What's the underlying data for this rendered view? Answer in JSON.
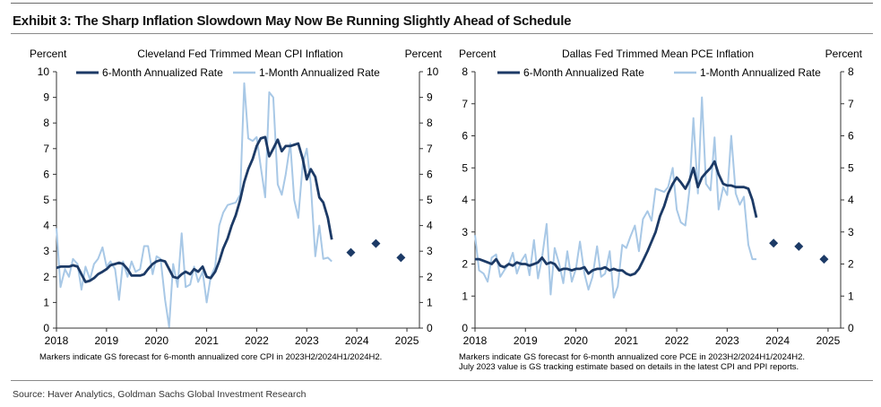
{
  "title": "Exhibit 3: The Sharp Inflation Slowdown May Now Be Running Slightly Ahead of Schedule",
  "source": "Source: Haver Analytics, Goldman Sachs Global Investment Research",
  "colors": {
    "dark": "#1c3a66",
    "light": "#a8c8e6",
    "axis": "#333333"
  },
  "chart_data": [
    {
      "type": "line",
      "title": "Cleveland Fed Trimmed Mean CPI Inflation",
      "ylabel_left": "Percent",
      "ylabel_right": "Percent",
      "ylim": [
        0,
        10
      ],
      "yticks": [
        "0",
        "1",
        "2",
        "3",
        "4",
        "5",
        "6",
        "7",
        "8",
        "9",
        "10"
      ],
      "xlim": [
        2018,
        2025.25
      ],
      "xticks": [
        "2018",
        "2019",
        "2020",
        "2021",
        "2022",
        "2023",
        "2024",
        "2025"
      ],
      "note": "Markers indicate GS forecast for 6-month annualized core CPI in 2023H2/2024H1/2024H2.",
      "series": [
        {
          "name": "6-Month Annualized Rate",
          "style": "dark",
          "x": [
            2018.0,
            2018.08,
            2018.17,
            2018.25,
            2018.33,
            2018.42,
            2018.5,
            2018.58,
            2018.67,
            2018.75,
            2018.83,
            2018.92,
            2019.0,
            2019.08,
            2019.17,
            2019.25,
            2019.33,
            2019.42,
            2019.5,
            2019.58,
            2019.67,
            2019.75,
            2019.83,
            2019.92,
            2020.0,
            2020.08,
            2020.17,
            2020.25,
            2020.33,
            2020.42,
            2020.5,
            2020.58,
            2020.67,
            2020.75,
            2020.83,
            2020.92,
            2021.0,
            2021.08,
            2021.17,
            2021.25,
            2021.33,
            2021.42,
            2021.5,
            2021.58,
            2021.67,
            2021.75,
            2021.83,
            2021.92,
            2022.0,
            2022.08,
            2022.17,
            2022.25,
            2022.33,
            2022.42,
            2022.5,
            2022.58,
            2022.67,
            2022.75,
            2022.83,
            2022.92,
            2023.0,
            2023.08,
            2023.17,
            2023.25,
            2023.33,
            2023.42,
            2023.5
          ],
          "values": [
            2.35,
            2.4,
            2.4,
            2.4,
            2.45,
            2.4,
            2.1,
            1.8,
            1.85,
            1.95,
            2.1,
            2.2,
            2.3,
            2.45,
            2.5,
            2.55,
            2.5,
            2.3,
            2.05,
            2.05,
            2.05,
            2.1,
            2.3,
            2.5,
            2.6,
            2.65,
            2.6,
            2.3,
            2.0,
            1.95,
            2.1,
            2.2,
            2.1,
            2.3,
            2.2,
            2.4,
            2.0,
            1.95,
            2.2,
            2.6,
            3.1,
            3.5,
            4.0,
            4.4,
            5.0,
            5.7,
            6.2,
            6.6,
            7.1,
            7.4,
            7.45,
            6.7,
            7.0,
            7.35,
            6.9,
            7.1,
            7.1,
            7.15,
            7.2,
            6.6,
            5.8,
            6.2,
            5.9,
            5.1,
            4.9,
            4.3,
            3.45
          ]
        },
        {
          "name": "1-Month Annualized Rate",
          "style": "light",
          "x": [
            2018.0,
            2018.08,
            2018.17,
            2018.25,
            2018.33,
            2018.42,
            2018.5,
            2018.58,
            2018.67,
            2018.75,
            2018.83,
            2018.92,
            2019.0,
            2019.08,
            2019.17,
            2019.25,
            2019.33,
            2019.42,
            2019.5,
            2019.58,
            2019.67,
            2019.75,
            2019.83,
            2019.92,
            2020.0,
            2020.08,
            2020.17,
            2020.25,
            2020.33,
            2020.42,
            2020.5,
            2020.58,
            2020.67,
            2020.75,
            2020.83,
            2020.92,
            2021.0,
            2021.08,
            2021.17,
            2021.25,
            2021.33,
            2021.42,
            2021.5,
            2021.58,
            2021.67,
            2021.75,
            2021.83,
            2021.92,
            2022.0,
            2022.08,
            2022.17,
            2022.25,
            2022.33,
            2022.42,
            2022.5,
            2022.58,
            2022.67,
            2022.75,
            2022.83,
            2022.92,
            2023.0,
            2023.08,
            2023.17,
            2023.25,
            2023.33,
            2023.42,
            2023.5
          ],
          "values": [
            3.9,
            1.6,
            2.3,
            2.0,
            2.7,
            2.5,
            1.5,
            2.4,
            1.9,
            2.5,
            2.7,
            3.15,
            2.4,
            2.6,
            2.3,
            1.1,
            2.6,
            2.0,
            2.6,
            2.2,
            2.3,
            3.2,
            3.2,
            2.1,
            2.8,
            2.7,
            1.1,
            0.05,
            2.5,
            1.6,
            3.7,
            1.6,
            1.7,
            2.4,
            1.8,
            2.2,
            1.0,
            2.0,
            2.4,
            4.0,
            4.5,
            4.8,
            4.85,
            4.9,
            5.2,
            9.55,
            7.4,
            7.3,
            7.45,
            6.3,
            5.1,
            9.2,
            9.0,
            5.6,
            5.2,
            6.0,
            7.2,
            5.0,
            4.3,
            6.4,
            7.0,
            5.6,
            2.8,
            4.0,
            2.7,
            2.75,
            2.6
          ]
        }
      ],
      "forecast": {
        "x": [
          2023.88,
          2024.38,
          2024.88
        ],
        "values": [
          2.95,
          3.3,
          2.75
        ]
      }
    },
    {
      "type": "line",
      "title": "Dallas Fed Trimmed Mean PCE Inflation",
      "ylabel_left": "Percent",
      "ylabel_right": "Percent",
      "ylim": [
        0,
        8
      ],
      "yticks": [
        "0",
        "1",
        "2",
        "3",
        "4",
        "5",
        "6",
        "7",
        "8"
      ],
      "xlim": [
        2018,
        2025.25
      ],
      "xticks": [
        "2018",
        "2019",
        "2020",
        "2021",
        "2022",
        "2023",
        "2024",
        "2025"
      ],
      "note": "Markers indicate GS forecast for 6-month annualized core PCE in 2023H2/2024H1/2024H2.",
      "note2": "July 2023 value is GS tracking estimate based on details in the latest CPI and PPI reports.",
      "series": [
        {
          "name": "6-Month Annualized Rate",
          "style": "dark",
          "x": [
            2018.0,
            2018.08,
            2018.17,
            2018.25,
            2018.33,
            2018.42,
            2018.5,
            2018.58,
            2018.67,
            2018.75,
            2018.83,
            2018.92,
            2019.0,
            2019.08,
            2019.17,
            2019.25,
            2019.33,
            2019.42,
            2019.5,
            2019.58,
            2019.67,
            2019.75,
            2019.83,
            2019.92,
            2020.0,
            2020.08,
            2020.17,
            2020.25,
            2020.33,
            2020.42,
            2020.5,
            2020.58,
            2020.67,
            2020.75,
            2020.83,
            2020.92,
            2021.0,
            2021.08,
            2021.17,
            2021.25,
            2021.33,
            2021.42,
            2021.5,
            2021.58,
            2021.67,
            2021.75,
            2021.83,
            2021.92,
            2022.0,
            2022.08,
            2022.17,
            2022.25,
            2022.33,
            2022.42,
            2022.5,
            2022.58,
            2022.67,
            2022.75,
            2022.83,
            2022.92,
            2023.0,
            2023.08,
            2023.17,
            2023.25,
            2023.33,
            2023.42,
            2023.5,
            2023.58
          ],
          "values": [
            2.15,
            2.15,
            2.1,
            2.05,
            2.0,
            2.15,
            1.95,
            1.9,
            2.0,
            1.95,
            2.05,
            2.0,
            2.0,
            1.95,
            2.0,
            2.05,
            2.2,
            2.0,
            2.05,
            2.0,
            1.8,
            1.85,
            1.85,
            1.8,
            1.85,
            1.85,
            1.9,
            1.7,
            1.8,
            1.85,
            1.85,
            1.9,
            1.8,
            1.85,
            1.8,
            1.8,
            1.7,
            1.65,
            1.7,
            1.85,
            2.1,
            2.4,
            2.7,
            3.0,
            3.5,
            3.8,
            4.2,
            4.5,
            4.7,
            4.55,
            4.35,
            4.6,
            5.0,
            4.4,
            4.7,
            4.85,
            5.0,
            5.2,
            4.8,
            4.5,
            4.45,
            4.45,
            4.4,
            4.4,
            4.4,
            4.35,
            4.0,
            3.45
          ]
        },
        {
          "name": "1-Month Annualized Rate",
          "style": "light",
          "x": [
            2018.0,
            2018.08,
            2018.17,
            2018.25,
            2018.33,
            2018.42,
            2018.5,
            2018.58,
            2018.67,
            2018.75,
            2018.83,
            2018.92,
            2019.0,
            2019.08,
            2019.17,
            2019.25,
            2019.33,
            2019.42,
            2019.5,
            2019.58,
            2019.67,
            2019.75,
            2019.83,
            2019.92,
            2020.0,
            2020.08,
            2020.17,
            2020.25,
            2020.33,
            2020.42,
            2020.5,
            2020.58,
            2020.67,
            2020.75,
            2020.83,
            2020.92,
            2021.0,
            2021.08,
            2021.17,
            2021.25,
            2021.33,
            2021.42,
            2021.5,
            2021.58,
            2021.67,
            2021.75,
            2021.83,
            2021.92,
            2022.0,
            2022.08,
            2022.17,
            2022.25,
            2022.33,
            2022.42,
            2022.5,
            2022.58,
            2022.67,
            2022.75,
            2022.83,
            2022.92,
            2023.0,
            2023.08,
            2023.17,
            2023.25,
            2023.33,
            2023.42,
            2023.5,
            2023.58
          ],
          "values": [
            2.9,
            1.8,
            1.7,
            1.45,
            2.2,
            2.3,
            1.6,
            1.8,
            2.0,
            2.35,
            1.7,
            2.1,
            2.3,
            1.65,
            2.75,
            1.55,
            2.2,
            3.25,
            1.05,
            2.5,
            2.0,
            1.4,
            2.4,
            1.45,
            1.85,
            2.7,
            1.7,
            1.2,
            1.6,
            2.55,
            1.6,
            1.7,
            2.4,
            0.95,
            1.3,
            2.6,
            2.5,
            2.85,
            3.2,
            2.4,
            3.4,
            3.65,
            3.35,
            4.35,
            4.3,
            4.25,
            4.4,
            5.0,
            3.7,
            3.3,
            3.2,
            4.3,
            6.55,
            4.2,
            7.2,
            4.5,
            4.3,
            5.95,
            3.7,
            4.4,
            4.15,
            6.0,
            4.2,
            3.85,
            4.1,
            2.6,
            2.15,
            2.15
          ]
        }
      ],
      "forecast": {
        "x": [
          2023.92,
          2024.42,
          2024.92
        ],
        "values": [
          2.65,
          2.55,
          2.15
        ]
      }
    }
  ]
}
